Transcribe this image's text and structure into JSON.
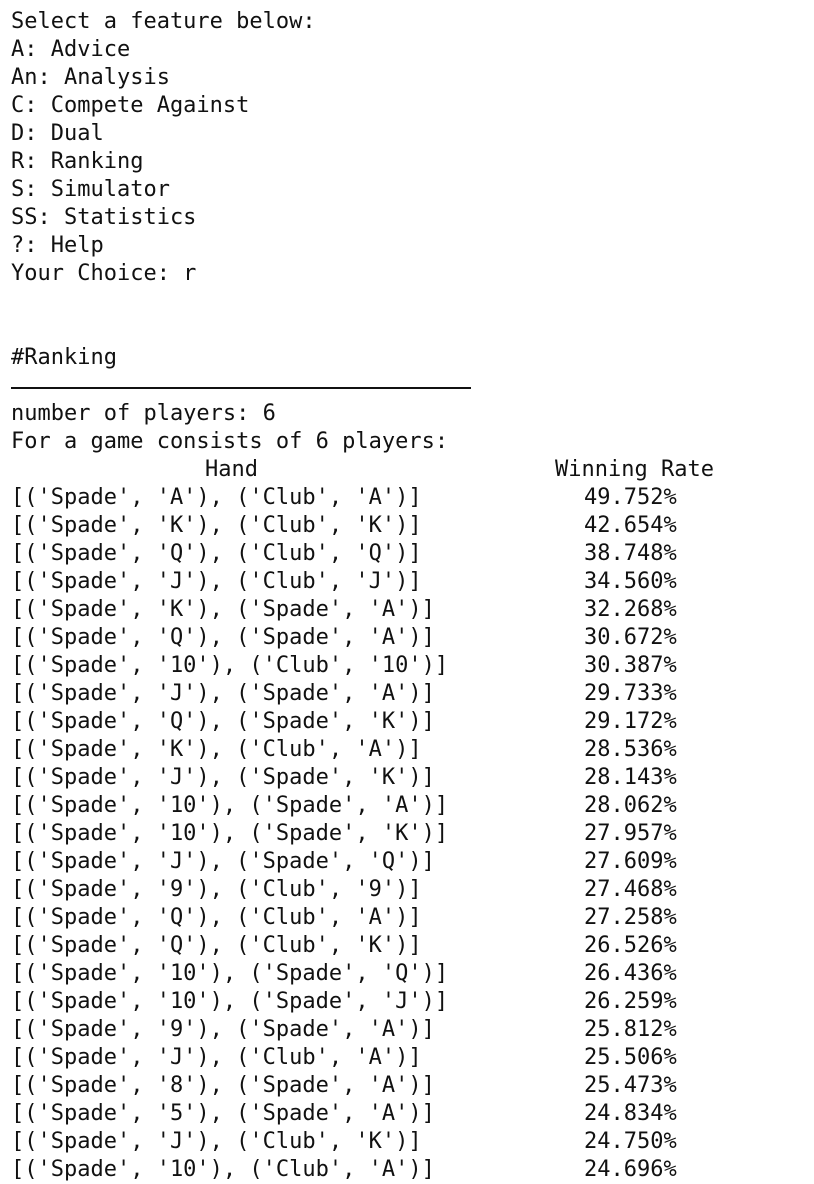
{
  "menu": {
    "prompt": "Select a feature below:",
    "options": [
      "A: Advice",
      "An: Analysis",
      "C: Compete Against",
      "D: Dual",
      "R: Ranking",
      "S: Simulator",
      "SS: Statistics",
      "?: Help"
    ],
    "choice_prompt": "Your Choice: r"
  },
  "ranking": {
    "heading": "#Ranking",
    "separator": "---------------------------------",
    "players_line": "number of players: 6",
    "game_line": "For a game consists of 6 players:",
    "columns": {
      "hand": "Hand",
      "rate": "Winning Rate"
    },
    "rows": [
      {
        "hand": "[('Spade', 'A'), ('Club', 'A')]",
        "rate": "49.752%"
      },
      {
        "hand": "[('Spade', 'K'), ('Club', 'K')]",
        "rate": "42.654%"
      },
      {
        "hand": "[('Spade', 'Q'), ('Club', 'Q')]",
        "rate": "38.748%"
      },
      {
        "hand": "[('Spade', 'J'), ('Club', 'J')]",
        "rate": "34.560%"
      },
      {
        "hand": "[('Spade', 'K'), ('Spade', 'A')]",
        "rate": "32.268%"
      },
      {
        "hand": "[('Spade', 'Q'), ('Spade', 'A')]",
        "rate": "30.672%"
      },
      {
        "hand": "[('Spade', '10'), ('Club', '10')]",
        "rate": "30.387%"
      },
      {
        "hand": "[('Spade', 'J'), ('Spade', 'A')]",
        "rate": "29.733%"
      },
      {
        "hand": "[('Spade', 'Q'), ('Spade', 'K')]",
        "rate": "29.172%"
      },
      {
        "hand": "[('Spade', 'K'), ('Club', 'A')]",
        "rate": "28.536%"
      },
      {
        "hand": "[('Spade', 'J'), ('Spade', 'K')]",
        "rate": "28.143%"
      },
      {
        "hand": "[('Spade', '10'), ('Spade', 'A')]",
        "rate": "28.062%"
      },
      {
        "hand": "[('Spade', '10'), ('Spade', 'K')]",
        "rate": "27.957%"
      },
      {
        "hand": "[('Spade', 'J'), ('Spade', 'Q')]",
        "rate": "27.609%"
      },
      {
        "hand": "[('Spade', '9'), ('Club', '9')]",
        "rate": "27.468%"
      },
      {
        "hand": "[('Spade', 'Q'), ('Club', 'A')]",
        "rate": "27.258%"
      },
      {
        "hand": "[('Spade', 'Q'), ('Club', 'K')]",
        "rate": "26.526%"
      },
      {
        "hand": "[('Spade', '10'), ('Spade', 'Q')]",
        "rate": "26.436%"
      },
      {
        "hand": "[('Spade', '10'), ('Spade', 'J')]",
        "rate": "26.259%"
      },
      {
        "hand": "[('Spade', '9'), ('Spade', 'A')]",
        "rate": "25.812%"
      },
      {
        "hand": "[('Spade', 'J'), ('Club', 'A')]",
        "rate": "25.506%"
      },
      {
        "hand": "[('Spade', '8'), ('Spade', 'A')]",
        "rate": "25.473%"
      },
      {
        "hand": "[('Spade', '5'), ('Spade', 'A')]",
        "rate": "24.834%"
      },
      {
        "hand": "[('Spade', 'J'), ('Club', 'K')]",
        "rate": "24.750%"
      },
      {
        "hand": "[('Spade', '10'), ('Club', 'A')]",
        "rate": "24.696%"
      }
    ]
  }
}
